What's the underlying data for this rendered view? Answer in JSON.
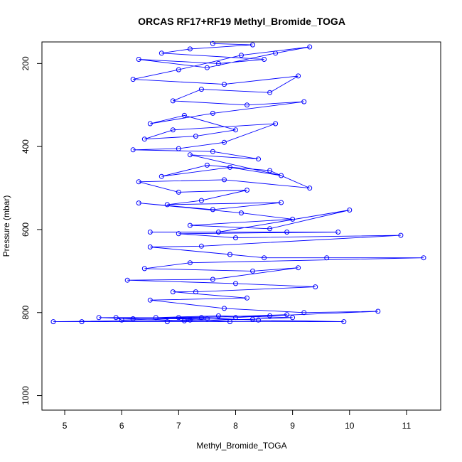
{
  "chart_data": {
    "type": "line",
    "title": "ORCAS RF17+RF19 Methyl_Bromide_TOGA",
    "xlabel": "Methyl_Bromide_TOGA",
    "ylabel": "Pressure (mbar)",
    "xlim": [
      4.6,
      11.6
    ],
    "ylim": [
      1035,
      148
    ],
    "y_reversed": true,
    "x_ticks": [
      5,
      6,
      7,
      8,
      9,
      10,
      11
    ],
    "x_tick_labels": [
      "5",
      "6",
      "7",
      "8",
      "9",
      "10",
      "11"
    ],
    "y_ticks": [
      200,
      400,
      600,
      800,
      1000
    ],
    "y_tick_labels": [
      "200",
      "400",
      "600",
      "800",
      "1000"
    ],
    "grid": false,
    "legend": "none",
    "series_color": "#0000ff",
    "series": [
      {
        "points": [
          [
            7.6,
            152
          ],
          [
            8.3,
            155
          ],
          [
            7.2,
            165
          ],
          [
            6.7,
            175
          ],
          [
            8.5,
            190
          ],
          [
            7.7,
            200
          ],
          [
            6.3,
            190
          ],
          [
            7.5,
            210
          ],
          [
            8.7,
            175
          ],
          [
            9.3,
            160
          ],
          [
            8.1,
            180
          ],
          [
            7.0,
            215
          ],
          [
            6.2,
            238
          ],
          [
            7.8,
            250
          ],
          [
            9.1,
            230
          ],
          [
            8.6,
            270
          ],
          [
            7.4,
            262
          ],
          [
            6.9,
            290
          ],
          [
            8.2,
            300
          ],
          [
            9.2,
            292
          ],
          [
            7.6,
            320
          ],
          [
            6.5,
            345
          ],
          [
            7.1,
            325
          ],
          [
            8.0,
            360
          ],
          [
            7.3,
            375
          ],
          [
            6.4,
            382
          ],
          [
            6.9,
            360
          ],
          [
            8.7,
            345
          ],
          [
            7.8,
            390
          ],
          [
            7.0,
            405
          ],
          [
            6.2,
            408
          ],
          [
            7.6,
            412
          ],
          [
            8.4,
            430
          ],
          [
            7.2,
            420
          ],
          [
            8.8,
            470
          ],
          [
            7.9,
            450
          ],
          [
            6.7,
            472
          ],
          [
            7.5,
            445
          ],
          [
            8.6,
            458
          ],
          [
            9.3,
            500
          ],
          [
            7.8,
            480
          ],
          [
            6.3,
            485
          ],
          [
            7.0,
            510
          ],
          [
            8.2,
            505
          ],
          [
            7.4,
            530
          ],
          [
            6.8,
            540
          ],
          [
            8.8,
            535
          ],
          [
            7.6,
            552
          ],
          [
            6.3,
            536
          ],
          [
            8.1,
            560
          ],
          [
            9.0,
            575
          ],
          [
            7.2,
            590
          ],
          [
            8.6,
            598
          ],
          [
            10.0,
            553
          ],
          [
            7.7,
            606
          ],
          [
            6.5,
            606
          ],
          [
            8.9,
            606
          ],
          [
            9.8,
            606
          ],
          [
            7.0,
            610
          ],
          [
            8.0,
            620
          ],
          [
            10.9,
            614
          ],
          [
            7.4,
            640
          ],
          [
            6.5,
            642
          ],
          [
            7.9,
            660
          ],
          [
            8.5,
            668
          ],
          [
            9.6,
            668
          ],
          [
            11.3,
            668
          ],
          [
            7.2,
            680
          ],
          [
            6.4,
            694
          ],
          [
            8.3,
            700
          ],
          [
            9.1,
            692
          ],
          [
            7.6,
            720
          ],
          [
            6.1,
            722
          ],
          [
            8.0,
            730
          ],
          [
            9.4,
            738
          ],
          [
            7.3,
            750
          ],
          [
            6.9,
            750
          ],
          [
            8.2,
            765
          ],
          [
            6.5,
            770
          ],
          [
            7.8,
            790
          ],
          [
            9.2,
            800
          ],
          [
            10.5,
            797
          ],
          [
            8.6,
            808
          ],
          [
            7.0,
            812
          ],
          [
            5.6,
            812
          ],
          [
            6.2,
            815
          ],
          [
            7.5,
            815
          ],
          [
            8.4,
            818
          ],
          [
            9.9,
            822
          ],
          [
            6.8,
            822
          ],
          [
            5.3,
            822
          ],
          [
            4.8,
            822
          ],
          [
            7.2,
            818
          ],
          [
            8.0,
            812
          ],
          [
            8.9,
            805
          ],
          [
            7.4,
            812
          ],
          [
            6.0,
            818
          ],
          [
            5.9,
            812
          ],
          [
            7.1,
            820
          ],
          [
            8.3,
            816
          ],
          [
            9.0,
            812
          ],
          [
            7.7,
            808
          ],
          [
            6.6,
            812
          ],
          [
            7.9,
            822
          ]
        ]
      }
    ]
  }
}
